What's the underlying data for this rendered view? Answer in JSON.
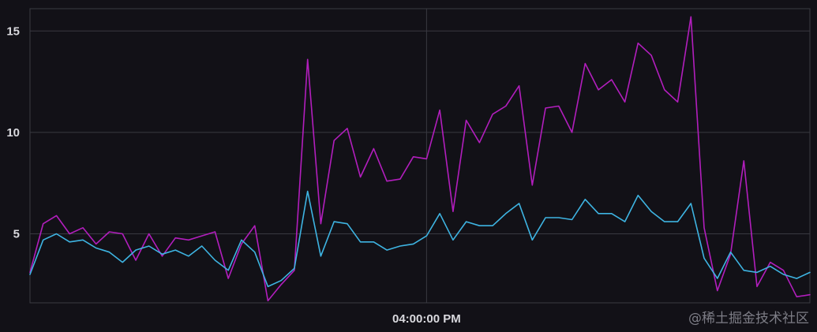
{
  "chart_data": {
    "type": "line",
    "title": "",
    "xlabel": "",
    "ylabel": "",
    "ylim": [
      1.6,
      16.1
    ],
    "xlim": [
      0,
      59
    ],
    "yticks": [
      5,
      10,
      15
    ],
    "xticks": [
      {
        "x": 30,
        "label": "04:00:00 PM"
      }
    ],
    "grid": true,
    "legend": "none",
    "series": [
      {
        "color": "#b21ebd",
        "values": [
          3.1,
          5.5,
          5.9,
          5.0,
          5.3,
          4.5,
          5.1,
          5.0,
          3.7,
          5.0,
          3.9,
          4.8,
          4.7,
          4.9,
          5.1,
          2.8,
          4.5,
          5.4,
          1.7,
          2.5,
          3.2,
          13.6,
          5.5,
          9.6,
          10.2,
          7.8,
          9.2,
          7.6,
          7.7,
          8.8,
          8.7,
          11.1,
          6.1,
          10.6,
          9.5,
          10.9,
          11.3,
          12.3,
          7.4,
          11.2,
          11.3,
          10.0,
          13.4,
          12.1,
          12.6,
          11.5,
          14.4,
          13.8,
          12.1,
          11.5,
          15.7,
          5.3,
          2.2,
          4.0,
          8.6,
          2.4,
          3.6,
          3.2,
          1.9,
          2.0
        ]
      },
      {
        "color": "#3eb4e2",
        "values": [
          3.0,
          4.7,
          5.0,
          4.6,
          4.7,
          4.3,
          4.1,
          3.6,
          4.2,
          4.4,
          4.0,
          4.2,
          3.9,
          4.4,
          3.7,
          3.2,
          4.7,
          4.1,
          2.4,
          2.7,
          3.3,
          7.1,
          3.9,
          5.6,
          5.5,
          4.6,
          4.6,
          4.2,
          4.4,
          4.5,
          4.9,
          6.0,
          4.7,
          5.6,
          5.4,
          5.4,
          6.0,
          6.5,
          4.7,
          5.8,
          5.8,
          5.7,
          6.7,
          6.0,
          6.0,
          5.6,
          6.9,
          6.1,
          5.6,
          5.6,
          6.5,
          3.8,
          2.8,
          4.1,
          3.2,
          3.1,
          3.4,
          3.0,
          2.8,
          3.1
        ]
      }
    ]
  },
  "watermark": "@稀土掘金技术社区"
}
